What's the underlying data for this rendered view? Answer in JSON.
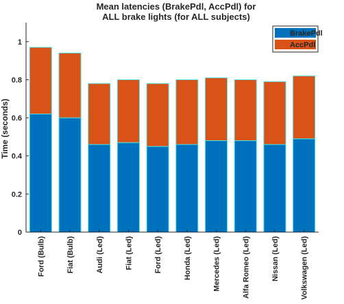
{
  "chart_data": {
    "type": "bar",
    "stacked": true,
    "title": [
      "Mean latencies (BrakePdl, AccPdl) for",
      "ALL brake lights (for ALL subjects)"
    ],
    "xlabel": "",
    "ylabel": "Time (seconds)",
    "ylim": [
      0,
      1.1
    ],
    "yticks": [
      "0",
      "0.2",
      "0.4",
      "0.6",
      "0.8",
      "1"
    ],
    "categories": [
      "Ford (Bulb)",
      "Fiat (Bulb)",
      "Audi (Led)",
      "Fiat (Led)",
      "Ford (Led)",
      "Honda (Led)",
      "Mercedes (Led)",
      "Alfa Romeo (Led)",
      "Nissan (Led)",
      "Volkswagen (Led)"
    ],
    "series": [
      {
        "name": "BrakePdl",
        "color": "#0072BD",
        "values": [
          0.62,
          0.6,
          0.46,
          0.47,
          0.45,
          0.46,
          0.48,
          0.48,
          0.46,
          0.49
        ]
      },
      {
        "name": "AccPdl",
        "color": "#D95319",
        "values": [
          0.35,
          0.34,
          0.32,
          0.33,
          0.33,
          0.34,
          0.33,
          0.32,
          0.33,
          0.33
        ]
      }
    ],
    "bar_edge_color": "#4DE0E0",
    "grid": false,
    "legend_position": "top-right"
  }
}
